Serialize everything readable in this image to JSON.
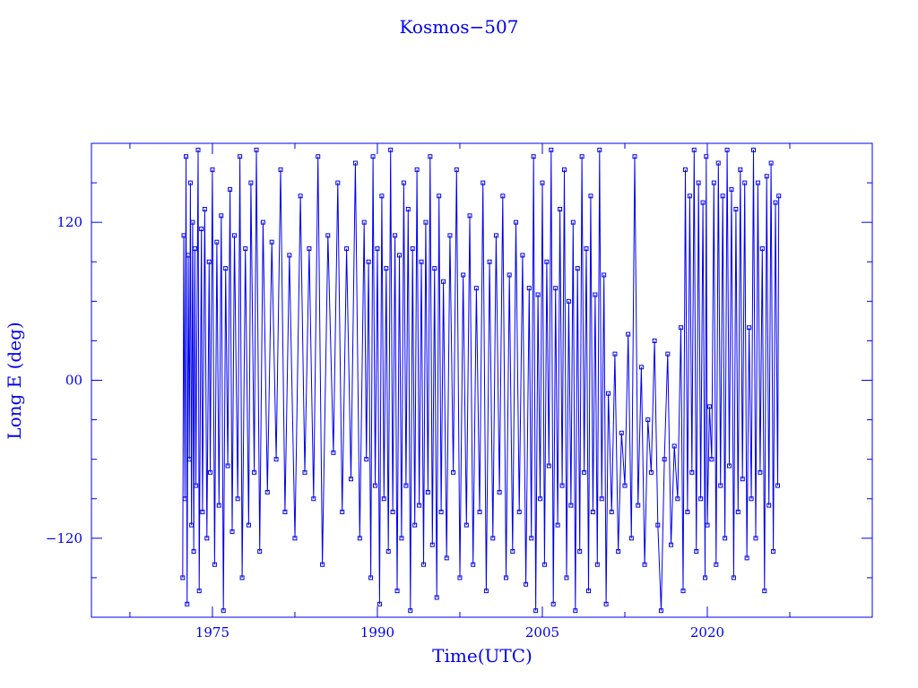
{
  "chart_data": {
    "type": "scatter",
    "title": "Kosmos−507",
    "xlabel": "Time(UTC)",
    "ylabel": "Long E (deg)",
    "xlim": [
      1964,
      2035
    ],
    "ylim": [
      -180,
      180
    ],
    "x_ticks": [
      1975,
      1990,
      2005,
      2020
    ],
    "x_tick_labels": [
      "1975",
      "1990",
      "2005",
      "2020"
    ],
    "x_minor_step": 7.5,
    "y_ticks": [
      120,
      0,
      -120
    ],
    "y_tick_labels": [
      "120",
      "00",
      "−120"
    ],
    "y_minor_step": 30,
    "grid": false,
    "connected": true,
    "marker": "square",
    "color": "#0000ee",
    "points": [
      [
        1972.3,
        -150
      ],
      [
        1972.4,
        110
      ],
      [
        1972.5,
        -90
      ],
      [
        1972.6,
        170
      ],
      [
        1972.7,
        -170
      ],
      [
        1972.8,
        95
      ],
      [
        1972.9,
        -60
      ],
      [
        1973.0,
        150
      ],
      [
        1973.1,
        -110
      ],
      [
        1973.2,
        120
      ],
      [
        1973.3,
        -130
      ],
      [
        1973.4,
        100
      ],
      [
        1973.5,
        -80
      ],
      [
        1973.7,
        175
      ],
      [
        1973.8,
        -160
      ],
      [
        1974.0,
        115
      ],
      [
        1974.1,
        -100
      ],
      [
        1974.3,
        130
      ],
      [
        1974.5,
        -120
      ],
      [
        1974.7,
        90
      ],
      [
        1974.8,
        -70
      ],
      [
        1975.0,
        160
      ],
      [
        1975.2,
        -140
      ],
      [
        1975.4,
        105
      ],
      [
        1975.6,
        -95
      ],
      [
        1975.8,
        125
      ],
      [
        1976.0,
        -175
      ],
      [
        1976.2,
        85
      ],
      [
        1976.4,
        -65
      ],
      [
        1976.6,
        145
      ],
      [
        1976.8,
        -115
      ],
      [
        1977.0,
        110
      ],
      [
        1977.3,
        -90
      ],
      [
        1977.5,
        170
      ],
      [
        1977.7,
        -150
      ],
      [
        1978.0,
        100
      ],
      [
        1978.3,
        -110
      ],
      [
        1978.5,
        150
      ],
      [
        1978.8,
        -70
      ],
      [
        1979.0,
        175
      ],
      [
        1979.3,
        -130
      ],
      [
        1979.6,
        120
      ],
      [
        1980.0,
        -85
      ],
      [
        1980.4,
        105
      ],
      [
        1980.8,
        -60
      ],
      [
        1981.2,
        160
      ],
      [
        1981.6,
        -100
      ],
      [
        1982.0,
        95
      ],
      [
        1982.5,
        -120
      ],
      [
        1983.0,
        140
      ],
      [
        1983.4,
        -70
      ],
      [
        1983.8,
        100
      ],
      [
        1984.2,
        -90
      ],
      [
        1984.6,
        170
      ],
      [
        1985.0,
        -140
      ],
      [
        1985.5,
        110
      ],
      [
        1986.0,
        -55
      ],
      [
        1986.4,
        150
      ],
      [
        1986.8,
        -100
      ],
      [
        1987.2,
        100
      ],
      [
        1987.6,
        -75
      ],
      [
        1988.0,
        165
      ],
      [
        1988.4,
        -120
      ],
      [
        1988.8,
        120
      ],
      [
        1989.0,
        -60
      ],
      [
        1989.2,
        90
      ],
      [
        1989.4,
        -150
      ],
      [
        1989.6,
        170
      ],
      [
        1989.8,
        -80
      ],
      [
        1990.0,
        100
      ],
      [
        1990.2,
        -170
      ],
      [
        1990.4,
        140
      ],
      [
        1990.6,
        -90
      ],
      [
        1990.8,
        85
      ],
      [
        1991.0,
        -130
      ],
      [
        1991.2,
        175
      ],
      [
        1991.4,
        -100
      ],
      [
        1991.6,
        110
      ],
      [
        1991.8,
        -160
      ],
      [
        1992.0,
        95
      ],
      [
        1992.2,
        -120
      ],
      [
        1992.4,
        150
      ],
      [
        1992.6,
        -80
      ],
      [
        1992.8,
        130
      ],
      [
        1993.0,
        -175
      ],
      [
        1993.2,
        100
      ],
      [
        1993.4,
        -110
      ],
      [
        1993.6,
        160
      ],
      [
        1993.8,
        -95
      ],
      [
        1994.0,
        90
      ],
      [
        1994.2,
        -140
      ],
      [
        1994.4,
        120
      ],
      [
        1994.6,
        -85
      ],
      [
        1994.8,
        170
      ],
      [
        1995.0,
        -125
      ],
      [
        1995.2,
        85
      ],
      [
        1995.4,
        -165
      ],
      [
        1995.6,
        140
      ],
      [
        1995.8,
        -100
      ],
      [
        1996.0,
        75
      ],
      [
        1996.3,
        -135
      ],
      [
        1996.6,
        110
      ],
      [
        1996.9,
        -70
      ],
      [
        1997.2,
        160
      ],
      [
        1997.5,
        -150
      ],
      [
        1997.8,
        80
      ],
      [
        1998.1,
        -110
      ],
      [
        1998.4,
        125
      ],
      [
        1998.7,
        -140
      ],
      [
        1999.0,
        70
      ],
      [
        1999.3,
        -100
      ],
      [
        1999.6,
        150
      ],
      [
        1999.9,
        -160
      ],
      [
        2000.2,
        90
      ],
      [
        2000.5,
        -120
      ],
      [
        2000.8,
        110
      ],
      [
        2001.1,
        -85
      ],
      [
        2001.4,
        140
      ],
      [
        2001.7,
        -150
      ],
      [
        2002.0,
        80
      ],
      [
        2002.3,
        -130
      ],
      [
        2002.6,
        120
      ],
      [
        2002.9,
        -100
      ],
      [
        2003.2,
        95
      ],
      [
        2003.5,
        -155
      ],
      [
        2003.8,
        70
      ],
      [
        2004.0,
        -120
      ],
      [
        2004.2,
        170
      ],
      [
        2004.4,
        -175
      ],
      [
        2004.6,
        65
      ],
      [
        2004.8,
        -90
      ],
      [
        2005.0,
        150
      ],
      [
        2005.2,
        -140
      ],
      [
        2005.4,
        90
      ],
      [
        2005.6,
        -65
      ],
      [
        2005.8,
        175
      ],
      [
        2006.0,
        -170
      ],
      [
        2006.2,
        70
      ],
      [
        2006.4,
        -110
      ],
      [
        2006.6,
        130
      ],
      [
        2006.8,
        -80
      ],
      [
        2007.0,
        160
      ],
      [
        2007.2,
        -150
      ],
      [
        2007.4,
        60
      ],
      [
        2007.6,
        -95
      ],
      [
        2007.8,
        120
      ],
      [
        2008.0,
        -175
      ],
      [
        2008.2,
        85
      ],
      [
        2008.4,
        -130
      ],
      [
        2008.6,
        170
      ],
      [
        2008.8,
        -70
      ],
      [
        2009.0,
        100
      ],
      [
        2009.2,
        -160
      ],
      [
        2009.4,
        140
      ],
      [
        2009.6,
        -100
      ],
      [
        2009.8,
        65
      ],
      [
        2010.0,
        -140
      ],
      [
        2010.2,
        175
      ],
      [
        2010.4,
        -90
      ],
      [
        2010.6,
        80
      ],
      [
        2010.8,
        -170
      ],
      [
        2011.0,
        -10
      ],
      [
        2011.3,
        -100
      ],
      [
        2011.6,
        20
      ],
      [
        2011.9,
        -130
      ],
      [
        2012.2,
        -40
      ],
      [
        2012.5,
        -80
      ],
      [
        2012.8,
        35
      ],
      [
        2013.1,
        -120
      ],
      [
        2013.4,
        170
      ],
      [
        2013.7,
        -95
      ],
      [
        2014.0,
        10
      ],
      [
        2014.3,
        -140
      ],
      [
        2014.6,
        -30
      ],
      [
        2014.9,
        -70
      ],
      [
        2015.2,
        30
      ],
      [
        2015.5,
        -110
      ],
      [
        2015.8,
        -175
      ],
      [
        2016.1,
        -60
      ],
      [
        2016.4,
        20
      ],
      [
        2016.7,
        -125
      ],
      [
        2017.0,
        -50
      ],
      [
        2017.3,
        -90
      ],
      [
        2017.6,
        40
      ],
      [
        2017.8,
        -160
      ],
      [
        2018.0,
        160
      ],
      [
        2018.2,
        -100
      ],
      [
        2018.4,
        140
      ],
      [
        2018.6,
        -70
      ],
      [
        2018.8,
        175
      ],
      [
        2019.0,
        -130
      ],
      [
        2019.2,
        150
      ],
      [
        2019.4,
        -90
      ],
      [
        2019.6,
        135
      ],
      [
        2019.8,
        -150
      ],
      [
        2019.9,
        170
      ],
      [
        2020.0,
        -110
      ],
      [
        2020.2,
        -20
      ],
      [
        2020.4,
        -60
      ],
      [
        2020.6,
        150
      ],
      [
        2020.8,
        -140
      ],
      [
        2021.0,
        165
      ],
      [
        2021.2,
        -80
      ],
      [
        2021.4,
        140
      ],
      [
        2021.6,
        -120
      ],
      [
        2021.8,
        175
      ],
      [
        2022.0,
        -65
      ],
      [
        2022.2,
        145
      ],
      [
        2022.4,
        -150
      ],
      [
        2022.6,
        130
      ],
      [
        2022.8,
        -100
      ],
      [
        2023.0,
        160
      ],
      [
        2023.2,
        -75
      ],
      [
        2023.4,
        150
      ],
      [
        2023.6,
        -135
      ],
      [
        2023.8,
        40
      ],
      [
        2024.0,
        -90
      ],
      [
        2024.2,
        175
      ],
      [
        2024.4,
        -120
      ],
      [
        2024.6,
        150
      ],
      [
        2024.8,
        -70
      ],
      [
        2025.0,
        100
      ],
      [
        2025.2,
        -160
      ],
      [
        2025.4,
        155
      ],
      [
        2025.6,
        -95
      ],
      [
        2025.8,
        165
      ],
      [
        2026.0,
        -130
      ],
      [
        2026.2,
        135
      ],
      [
        2026.4,
        -80
      ],
      [
        2026.5,
        140
      ]
    ]
  }
}
